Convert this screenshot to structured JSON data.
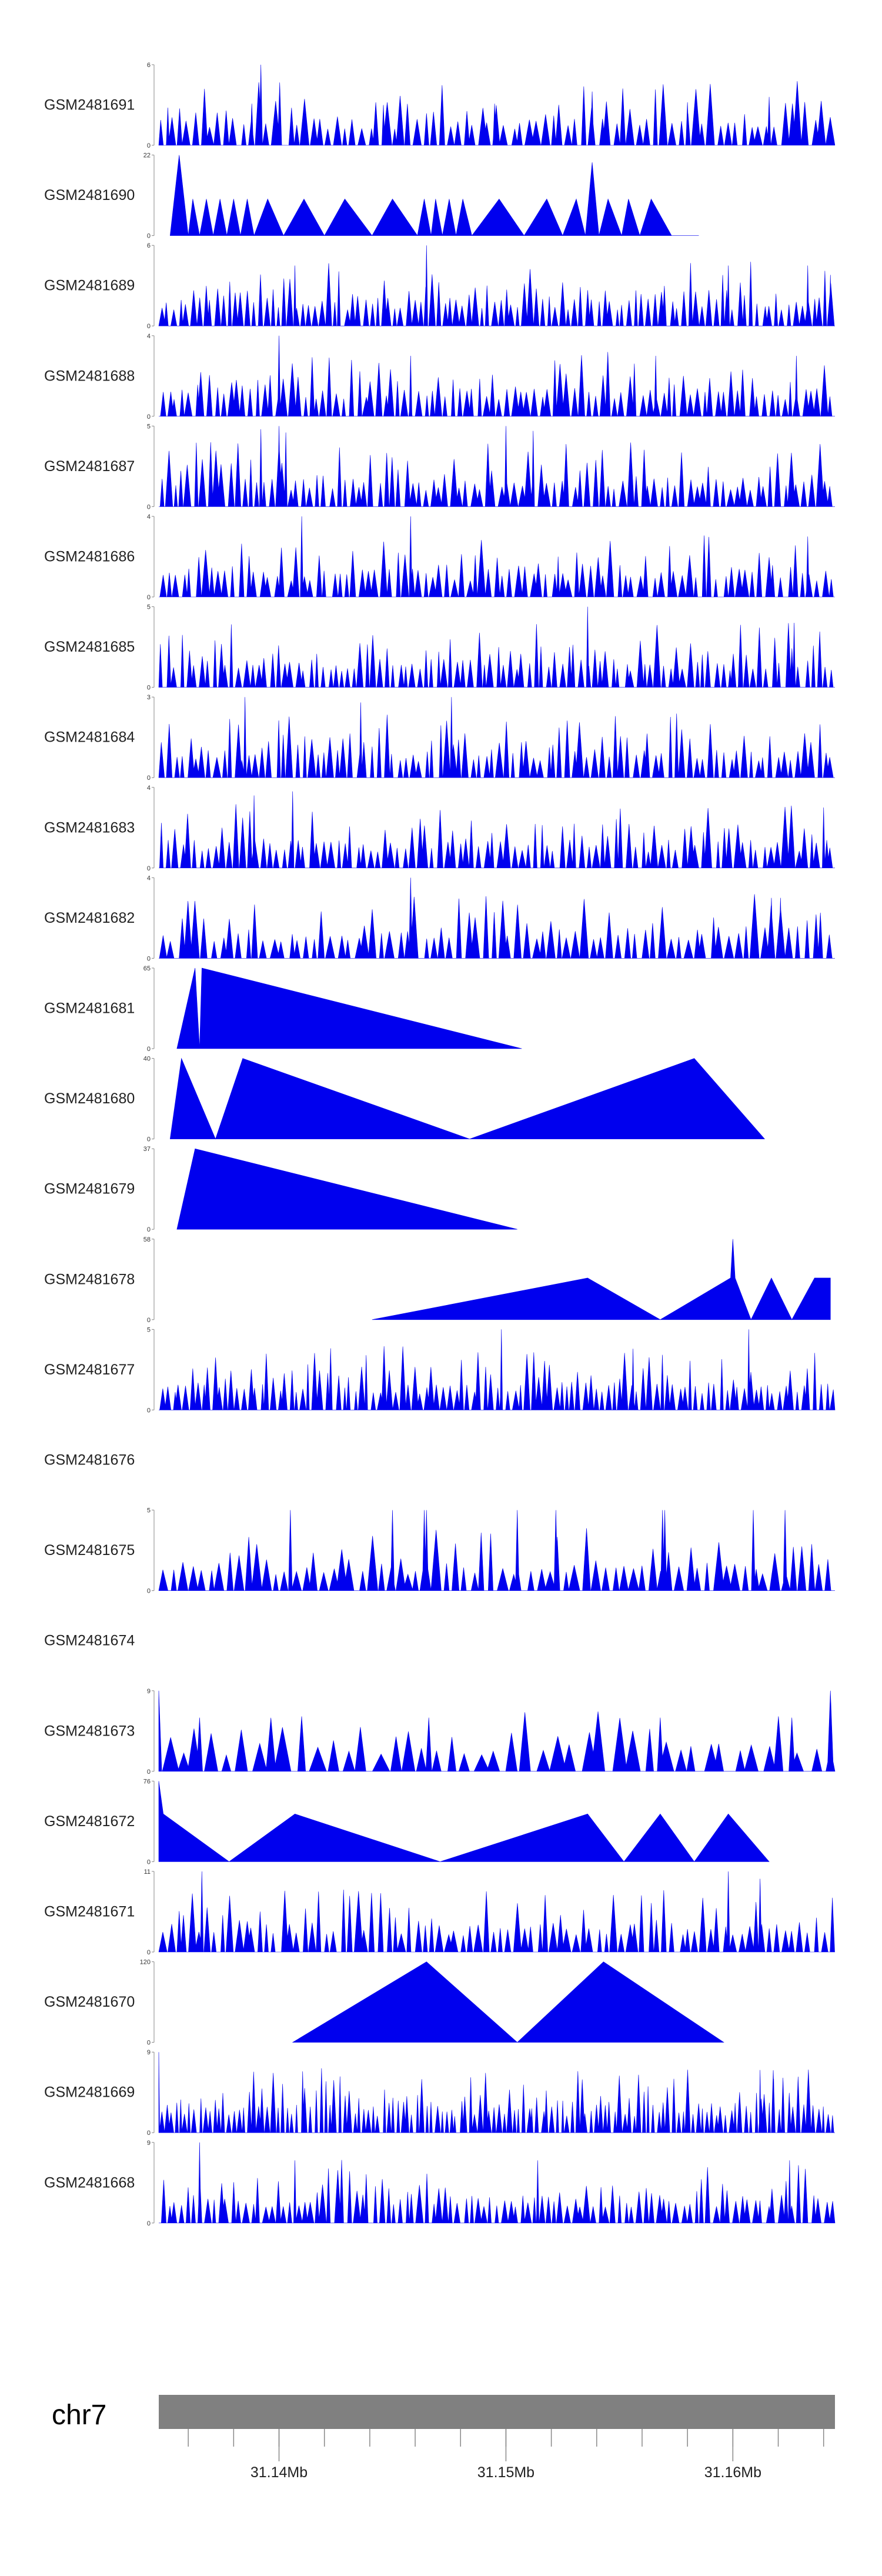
{
  "chart_data": {
    "type": "area",
    "title": "",
    "chromosome": "chr7",
    "xlim": [
      31.1347,
      31.1645
    ],
    "x_tick_labels": [
      {
        "value": 31.14,
        "label": "31.14Mb"
      },
      {
        "value": 31.15,
        "label": "31.15Mb"
      },
      {
        "value": 31.16,
        "label": "31.16Mb"
      }
    ],
    "x_minor_ticks": [
      31.136,
      31.138,
      31.14,
      31.142,
      31.144,
      31.146,
      31.148,
      31.15,
      31.152,
      31.154,
      31.156,
      31.158,
      31.16,
      31.162,
      31.164
    ],
    "series": [
      {
        "name": "GSM2481691",
        "ymax": 6,
        "ymax_label": "6",
        "ymin_label": "0",
        "style": "spiky",
        "density": 85,
        "x_range": [
          31.1347,
          31.1645
        ],
        "peaks": [
          [
            31.1351,
            2.8
          ],
          [
            31.1388,
            3.1
          ],
          [
            31.1392,
            6.0
          ],
          [
            31.1446,
            3.0
          ],
          [
            31.1495,
            3.1
          ],
          [
            31.1538,
            4.0
          ],
          [
            31.158,
            3.2
          ],
          [
            31.1616,
            3.6
          ]
        ]
      },
      {
        "name": "GSM2481690",
        "ymax": 22,
        "ymax_label": "22",
        "ymin_label": "0",
        "style": "peaks",
        "x_range": [
          31.1347,
          31.1645
        ],
        "points": [
          [
            31.1352,
            0
          ],
          [
            31.1356,
            22
          ],
          [
            31.136,
            0
          ],
          [
            31.1362,
            10
          ],
          [
            31.1365,
            0
          ],
          [
            31.1368,
            10
          ],
          [
            31.1371,
            0
          ],
          [
            31.1374,
            10
          ],
          [
            31.1377,
            0
          ],
          [
            31.138,
            10
          ],
          [
            31.1383,
            0
          ],
          [
            31.1386,
            10
          ],
          [
            31.1389,
            0
          ],
          [
            31.1395,
            10
          ],
          [
            31.1402,
            0
          ],
          [
            31.1411,
            10
          ],
          [
            31.142,
            0
          ],
          [
            31.1429,
            10
          ],
          [
            31.1441,
            0
          ],
          [
            31.145,
            10
          ],
          [
            31.1461,
            0
          ],
          [
            31.1464,
            10
          ],
          [
            31.1467,
            0
          ],
          [
            31.1469,
            10
          ],
          [
            31.1472,
            0
          ],
          [
            31.1475,
            10
          ],
          [
            31.1478,
            0
          ],
          [
            31.1481,
            10
          ],
          [
            31.1485,
            0
          ],
          [
            31.1497,
            10
          ],
          [
            31.1508,
            0
          ],
          [
            31.1518,
            10
          ],
          [
            31.1525,
            0
          ],
          [
            31.1531,
            10
          ],
          [
            31.1535,
            0
          ],
          [
            31.1538,
            20
          ],
          [
            31.1541,
            0
          ],
          [
            31.1545,
            10
          ],
          [
            31.1551,
            0
          ],
          [
            31.1554,
            10
          ],
          [
            31.1559,
            0
          ],
          [
            31.1564,
            10
          ],
          [
            31.1573,
            0
          ],
          [
            31.1585,
            0
          ]
        ]
      },
      {
        "name": "GSM2481689",
        "ymax": 6,
        "ymax_label": "6",
        "ymin_label": "0",
        "style": "spiky",
        "density": 110,
        "x_range": [
          31.1347,
          31.1645
        ],
        "peaks": [
          [
            31.1407,
            4.5
          ],
          [
            31.1465,
            6.0
          ],
          [
            31.1598,
            4.5
          ],
          [
            31.1633,
            4.5
          ],
          [
            31.1643,
            3.8
          ]
        ]
      },
      {
        "name": "GSM2481688",
        "ymax": 4,
        "ymax_label": "4",
        "ymin_label": "0",
        "style": "spiky",
        "density": 100,
        "x_range": [
          31.1347,
          31.1645
        ],
        "peaks": [
          [
            31.14,
            4.0
          ],
          [
            31.1458,
            3.0
          ],
          [
            31.1566,
            3.0
          ],
          [
            31.1628,
            3.0
          ]
        ]
      },
      {
        "name": "GSM2481687",
        "ymax": 5,
        "ymax_label": "5",
        "ymin_label": "0",
        "style": "spiky",
        "density": 100,
        "x_range": [
          31.1347,
          31.1645
        ],
        "peaks": [
          [
            31.1392,
            4.8
          ],
          [
            31.14,
            5.0
          ],
          [
            31.1403,
            4.6
          ],
          [
            31.15,
            5.0
          ],
          [
            31.1512,
            4.7
          ]
        ]
      },
      {
        "name": "GSM2481686",
        "ymax": 4,
        "ymax_label": "4",
        "ymin_label": "0",
        "style": "spiky",
        "density": 95,
        "x_range": [
          31.1347,
          31.1645
        ],
        "peaks": [
          [
            31.141,
            4.0
          ],
          [
            31.1458,
            4.0
          ],
          [
            31.1523,
            2.0
          ],
          [
            31.1633,
            3.0
          ]
        ]
      },
      {
        "name": "GSM2481685",
        "ymax": 5,
        "ymax_label": "5",
        "ymin_label": "0",
        "style": "spiky",
        "density": 105,
        "x_range": [
          31.1347,
          31.1645
        ],
        "peaks": [
          [
            31.1536,
            5.0
          ],
          [
            31.1627,
            4.0
          ]
        ]
      },
      {
        "name": "GSM2481684",
        "ymax": 3,
        "ymax_label": "3",
        "ymin_label": "0",
        "style": "spiky",
        "density": 100,
        "x_range": [
          31.1347,
          31.1645
        ],
        "peaks": [
          [
            31.1385,
            3.0
          ],
          [
            31.1436,
            2.8
          ],
          [
            31.1476,
            3.0
          ]
        ]
      },
      {
        "name": "GSM2481683",
        "ymax": 4,
        "ymax_label": "4",
        "ymin_label": "0",
        "style": "spiky",
        "density": 100,
        "x_range": [
          31.1347,
          31.1645
        ],
        "peaks": [
          [
            31.1389,
            3.6
          ],
          [
            31.1406,
            3.8
          ],
          [
            31.164,
            3.0
          ]
        ]
      },
      {
        "name": "GSM2481682",
        "ymax": 4,
        "ymax_label": "4",
        "ymin_label": "0",
        "style": "spiky",
        "density": 80,
        "x_range": [
          31.1347,
          31.1645
        ],
        "peaks": [
          [
            31.1458,
            4.0
          ],
          [
            31.1617,
            3.0
          ],
          [
            31.1621,
            3.0
          ]
        ]
      },
      {
        "name": "GSM2481681",
        "ymax": 65,
        "ymax_label": "65",
        "ymin_label": "0",
        "style": "peaks",
        "x_range": [
          31.1347,
          31.1645
        ],
        "points": [
          [
            31.1355,
            0
          ],
          [
            31.1363,
            65
          ],
          [
            31.1365,
            0
          ],
          [
            31.1366,
            65
          ],
          [
            31.1507,
            0
          ]
        ]
      },
      {
        "name": "GSM2481680",
        "ymax": 40,
        "ymax_label": "40",
        "ymin_label": "0",
        "style": "peaks",
        "x_range": [
          31.1347,
          31.1645
        ],
        "points": [
          [
            31.1352,
            0
          ],
          [
            31.1357,
            40
          ],
          [
            31.1372,
            0
          ],
          [
            31.1384,
            40
          ],
          [
            31.1484,
            0
          ],
          [
            31.1583,
            40
          ],
          [
            31.1614,
            0
          ]
        ]
      },
      {
        "name": "GSM2481679",
        "ymax": 37,
        "ymax_label": "37",
        "ymin_label": "0",
        "style": "peaks",
        "x_range": [
          31.1347,
          31.1645
        ],
        "points": [
          [
            31.1355,
            0
          ],
          [
            31.1363,
            37
          ],
          [
            31.1505,
            0
          ]
        ]
      },
      {
        "name": "GSM2481678",
        "ymax": 58,
        "ymax_label": "58",
        "ymin_label": "0",
        "style": "peaks",
        "x_range": [
          31.1347,
          31.1645
        ],
        "points": [
          [
            31.1441,
            0
          ],
          [
            31.1536,
            30
          ],
          [
            31.1568,
            0
          ],
          [
            31.1599,
            30
          ],
          [
            31.16,
            58
          ],
          [
            31.1601,
            30
          ],
          [
            31.1608,
            0
          ],
          [
            31.1617,
            30
          ],
          [
            31.1626,
            0
          ],
          [
            31.1636,
            30
          ],
          [
            31.1643,
            30
          ],
          [
            31.1643,
            0
          ]
        ]
      },
      {
        "name": "GSM2481677",
        "ymax": 5,
        "ymax_label": "5",
        "ymin_label": "0",
        "style": "spiky",
        "density": 115,
        "x_range": [
          31.1347,
          31.1645
        ],
        "peaks": [
          [
            31.1498,
            5.0
          ],
          [
            31.1607,
            5.0
          ],
          [
            31.1556,
            3.8
          ]
        ]
      },
      {
        "name": "GSM2481676",
        "ymax": 0,
        "ymax_label": "",
        "ymin_label": "",
        "style": "empty",
        "x_range": [
          31.1347,
          31.1645
        ]
      },
      {
        "name": "GSM2481675",
        "ymax": 5,
        "ymax_label": "5",
        "ymin_label": "0",
        "style": "spiky",
        "density": 72,
        "x_range": [
          31.1347,
          31.1645
        ],
        "peaks": [
          [
            31.1405,
            5.0
          ],
          [
            31.145,
            5.0
          ],
          [
            31.1464,
            5.0
          ],
          [
            31.1465,
            5.0
          ],
          [
            31.1505,
            5.0
          ],
          [
            31.1522,
            5.0
          ],
          [
            31.1569,
            5.0
          ],
          [
            31.157,
            5.0
          ],
          [
            31.1609,
            5.0
          ],
          [
            31.1623,
            5.0
          ]
        ]
      },
      {
        "name": "GSM2481674",
        "ymax": 0,
        "ymax_label": "",
        "ymin_label": "",
        "style": "empty",
        "x_range": [
          31.1347,
          31.1645
        ]
      },
      {
        "name": "GSM2481673",
        "ymax": 9,
        "ymax_label": "9",
        "ymin_label": "0",
        "style": "spiky",
        "density": 45,
        "x_range": [
          31.1347,
          31.1645
        ],
        "peaks": [
          [
            31.1347,
            9.0
          ],
          [
            31.1365,
            6.0
          ],
          [
            31.1466,
            6.0
          ],
          [
            31.1541,
            3.5
          ],
          [
            31.1568,
            6.0
          ],
          [
            31.1626,
            6.0
          ],
          [
            31.1643,
            9.0
          ]
        ]
      },
      {
        "name": "GSM2481672",
        "ymax": 76,
        "ymax_label": "76",
        "ymin_label": "0",
        "style": "peaks",
        "x_range": [
          31.1347,
          31.1645
        ],
        "points": [
          [
            31.1347,
            0
          ],
          [
            31.1347,
            76
          ],
          [
            31.1349,
            45
          ],
          [
            31.1378,
            0
          ],
          [
            31.1407,
            45
          ],
          [
            31.1471,
            0
          ],
          [
            31.1536,
            45
          ],
          [
            31.1552,
            0
          ],
          [
            31.1568,
            45
          ],
          [
            31.1583,
            0
          ],
          [
            31.1598,
            45
          ],
          [
            31.1616,
            0
          ]
        ]
      },
      {
        "name": "GSM2481671",
        "ymax": 11,
        "ymax_label": "11",
        "ymin_label": "0",
        "style": "spiky",
        "density": 90,
        "x_range": [
          31.1347,
          31.1645
        ],
        "peaks": [
          [
            31.1366,
            11.0
          ],
          [
            31.1598,
            11.0
          ],
          [
            31.1612,
            10.0
          ]
        ]
      },
      {
        "name": "GSM2481670",
        "ymax": 120,
        "ymax_label": "120",
        "ymin_label": "0",
        "style": "peaks",
        "x_range": [
          31.1347,
          31.1645
        ],
        "points": [
          [
            31.1406,
            0
          ],
          [
            31.1465,
            120
          ],
          [
            31.1505,
            0
          ],
          [
            31.1543,
            120
          ],
          [
            31.1596,
            0
          ]
        ]
      },
      {
        "name": "GSM2481669",
        "ymax": 9,
        "ymax_label": "9",
        "ymin_label": "0",
        "style": "spiky",
        "density": 140,
        "x_range": [
          31.1347,
          31.1645
        ],
        "peaks": [
          [
            31.1347,
            9.0
          ],
          [
            31.1612,
            7.0
          ],
          [
            31.1618,
            6.0
          ]
        ]
      },
      {
        "name": "GSM2481668",
        "ymax": 9,
        "ymax_label": "9",
        "ymin_label": "0",
        "style": "spiky",
        "density": 105,
        "x_range": [
          31.1347,
          31.1645
        ],
        "peaks": [
          [
            31.1365,
            9.0
          ],
          [
            31.1407,
            7.0
          ],
          [
            31.1514,
            7.0
          ],
          [
            31.1625,
            7.0
          ]
        ]
      }
    ]
  },
  "colors": {
    "fill": "#0000ee",
    "ideogram": "#808080",
    "axis": "#888888"
  }
}
